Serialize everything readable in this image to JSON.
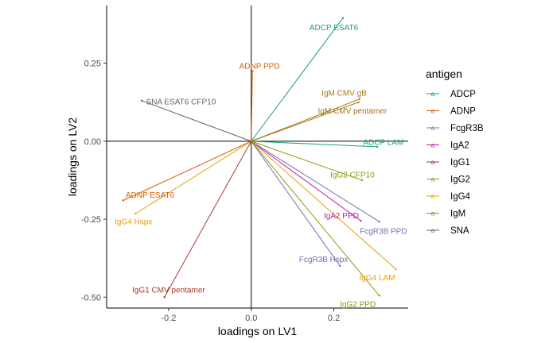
{
  "chart_data": {
    "type": "biplot",
    "xlabel": "loadings on LV1",
    "ylabel": "loadings on LV2",
    "xlim": [
      -0.35,
      0.38
    ],
    "ylim": [
      -0.535,
      0.435
    ],
    "x_ticks": [
      -0.2,
      0.0,
      0.2
    ],
    "x_tick_labels": [
      "-0.2",
      "0.0",
      "0.2"
    ],
    "y_ticks": [
      0.25,
      0.0,
      -0.25,
      -0.5
    ],
    "y_tick_labels": [
      "0.25",
      "0.00",
      "-0.25",
      "-0.50"
    ],
    "reference_lines": {
      "x": 0,
      "y": 0
    },
    "grid": false,
    "legend": {
      "title": "antigen",
      "placement": "right",
      "entries": [
        {
          "name": "ADCP",
          "color": "#1b9e77"
        },
        {
          "name": "ADNP",
          "color": "#d95f02"
        },
        {
          "name": "FcgR3B",
          "color": "#7570b3"
        },
        {
          "name": "IgA2",
          "color": "#c51b9a"
        },
        {
          "name": "IgG1",
          "color": "#a6392c"
        },
        {
          "name": "IgG2",
          "color": "#8a9a0b"
        },
        {
          "name": "IgG4",
          "color": "#e6a002"
        },
        {
          "name": "IgM",
          "color": "#a6761d"
        },
        {
          "name": "SNA",
          "color": "#666666"
        }
      ]
    },
    "vectors": [
      {
        "label": "ADCP ESAT6",
        "antigen": "ADCP",
        "x": 0.222,
        "y": 0.395,
        "label_x": 0.2,
        "label_y": 0.365
      },
      {
        "label": "ADNP PPD",
        "antigen": "ADNP",
        "x": 0.003,
        "y": 0.225,
        "label_x": 0.02,
        "label_y": 0.242
      },
      {
        "label": "SNA ESAT6 CFP10",
        "antigen": "SNA",
        "x": -0.265,
        "y": 0.13,
        "label_x": -0.17,
        "label_y": 0.127
      },
      {
        "label": "IgM CMV gB",
        "antigen": "IgM",
        "x": 0.262,
        "y": 0.135,
        "label_x": 0.225,
        "label_y": 0.155
      },
      {
        "label": "IgM CMV pentamer",
        "antigen": "IgM",
        "x": 0.26,
        "y": 0.125,
        "label_x": 0.245,
        "label_y": 0.098
      },
      {
        "label": "ADCP LAM",
        "antigen": "ADCP",
        "x": 0.305,
        "y": -0.018,
        "label_x": 0.32,
        "label_y": -0.003
      },
      {
        "label": "IgG2 CFP10",
        "antigen": "IgG2",
        "x": 0.268,
        "y": -0.125,
        "label_x": 0.245,
        "label_y": -0.107
      },
      {
        "label": "ADNP ESAT6",
        "antigen": "ADNP",
        "x": -0.31,
        "y": -0.19,
        "label_x": -0.245,
        "label_y": -0.172
      },
      {
        "label": "IgG4 Hspx",
        "antigen": "IgG4",
        "x": -0.28,
        "y": -0.232,
        "label_x": -0.285,
        "label_y": -0.258
      },
      {
        "label": "IgA2 PPD",
        "antigen": "IgA2",
        "x": 0.265,
        "y": -0.255,
        "label_x": 0.218,
        "label_y": -0.238
      },
      {
        "label": "FcgR3B PPD",
        "antigen": "FcgR3B",
        "x": 0.31,
        "y": -0.258,
        "label_x": 0.32,
        "label_y": -0.288
      },
      {
        "label": "FcgR3B Hspx",
        "antigen": "FcgR3B",
        "x": 0.215,
        "y": -0.4,
        "label_x": 0.175,
        "label_y": -0.378
      },
      {
        "label": "IgG4 LAM",
        "antigen": "IgG4",
        "x": 0.35,
        "y": -0.41,
        "label_x": 0.305,
        "label_y": -0.437
      },
      {
        "label": "IgG1 CMV pentamer",
        "antigen": "IgG1",
        "x": -0.21,
        "y": -0.5,
        "label_x": -0.2,
        "label_y": -0.476
      },
      {
        "label": "IgG2 PPD",
        "antigen": "IgG2",
        "x": 0.31,
        "y": -0.495,
        "label_x": 0.258,
        "label_y": -0.522
      }
    ]
  }
}
